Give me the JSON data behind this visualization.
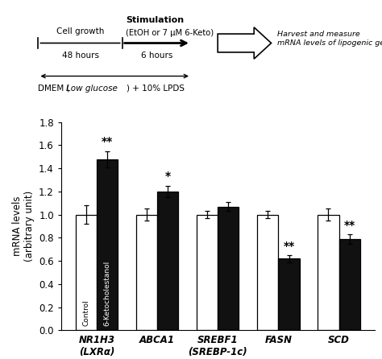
{
  "categories": [
    "NR1H3\n(LXRα)",
    "ABCA1",
    "SREBF1\n(SREBP-1c)",
    "FASN",
    "SCD"
  ],
  "control_values": [
    1.0,
    1.0,
    1.0,
    1.0,
    1.0
  ],
  "keto_values": [
    1.48,
    1.2,
    1.07,
    0.62,
    0.79
  ],
  "control_errors": [
    0.08,
    0.05,
    0.03,
    0.03,
    0.05
  ],
  "keto_errors": [
    0.07,
    0.05,
    0.04,
    0.03,
    0.04
  ],
  "significance": [
    "**",
    "*",
    "",
    "**",
    "**"
  ],
  "ylabel": "mRNA levels\n(arbitrary unit)",
  "ylim": [
    0,
    1.8
  ],
  "yticks": [
    0.0,
    0.2,
    0.4,
    0.6,
    0.8,
    1.0,
    1.2,
    1.4,
    1.6,
    1.8
  ],
  "bar_width": 0.35,
  "control_color": "#ffffff",
  "keto_color": "#111111",
  "edge_color": "#000000",
  "diagram_title_bold": "Stimulation",
  "diagram_subtitle": "(EtOH or 7 μM 6-Keto)",
  "cell_growth_label": "Cell growth",
  "hours_48": "48 hours",
  "hours_6": "6 hours",
  "dmem_label_pre": "DMEM (",
  "dmem_label_italic": "Low glucose",
  "dmem_label_post": ") + 10% LPDS",
  "harvest_label": "Harvest and measure\nmRNA levels of lipogenic genes",
  "legend_control": "Control",
  "legend_keto": "6-Ketocholestanol"
}
